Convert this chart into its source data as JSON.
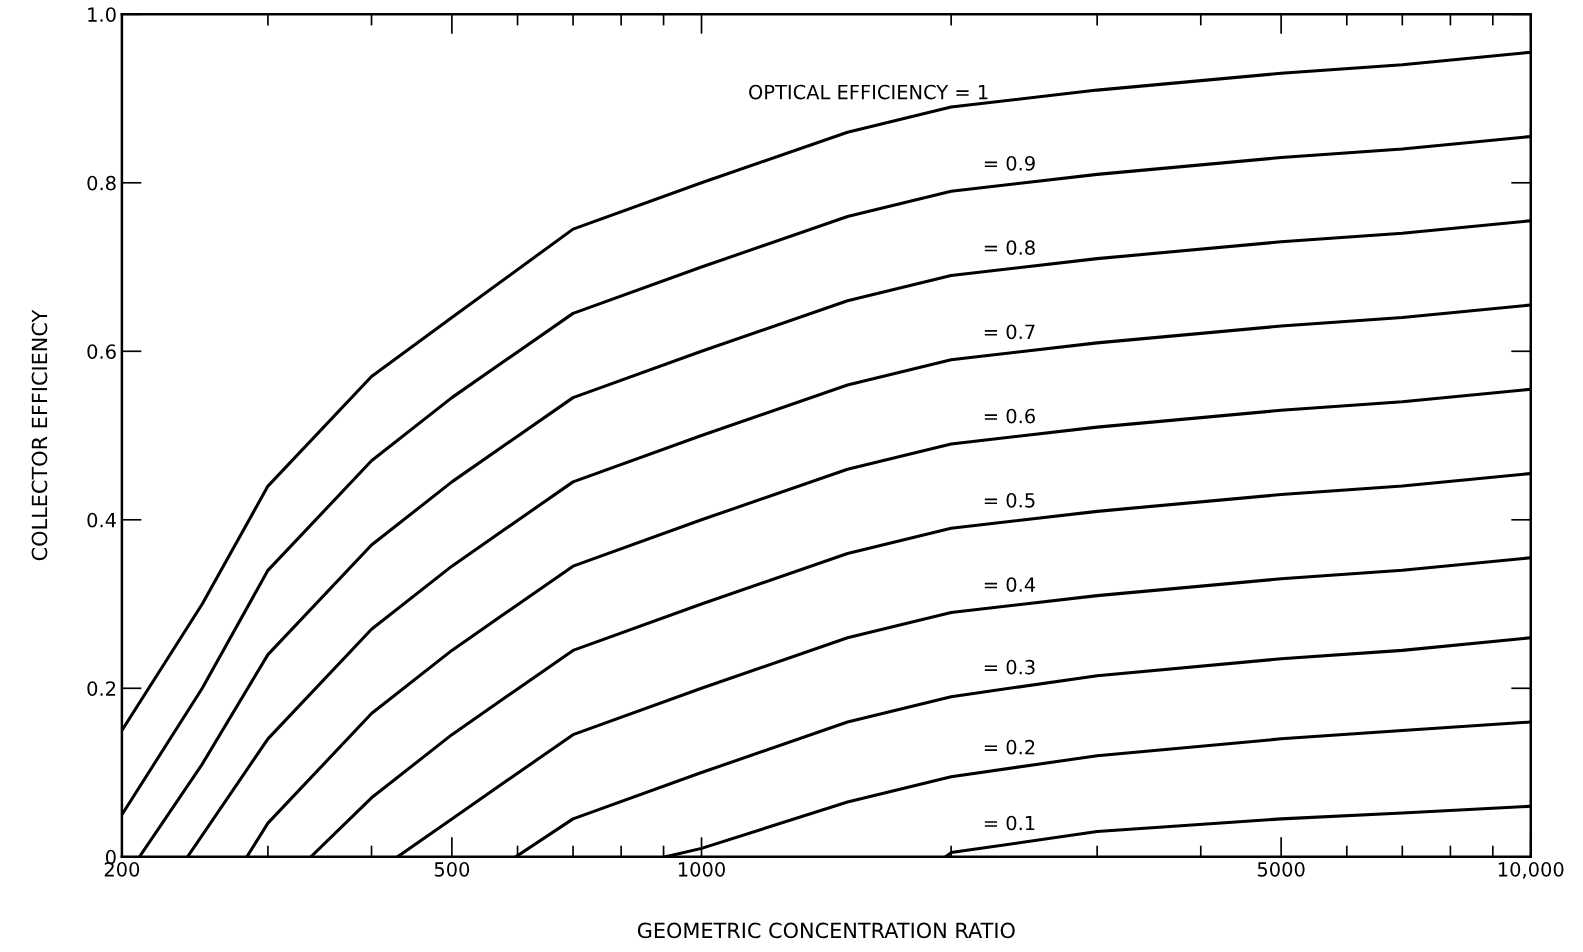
{
  "chart_data": {
    "type": "line",
    "xlabel": "GEOMETRIC CONCENTRATION RATIO",
    "ylabel": "COLLECTOR EFFICIENCY",
    "log": "x",
    "grid": false,
    "marker": "none",
    "line_style": "solid",
    "xlim": [
      200,
      10000
    ],
    "ylim": [
      0,
      1
    ],
    "xticks": [
      200,
      500,
      1000,
      5000,
      {
        "value": 10000,
        "label": "10,000"
      }
    ],
    "yticks": [
      0,
      0.2,
      0.4,
      0.6,
      0.8,
      {
        "value": 1,
        "label": "1.0"
      }
    ],
    "series": [
      {
        "name": "OPTICAL EFFICIENCY = 1",
        "color": "#000000",
        "x": [
          200,
          250,
          300,
          400,
          500,
          700,
          1000,
          1500,
          2000,
          3000,
          5000,
          7000,
          10000
        ],
        "values": [
          0.15,
          0.3,
          0.44,
          0.57,
          0.64,
          0.745,
          0.8,
          0.86,
          0.89,
          0.91,
          0.93,
          0.94,
          0.955
        ]
      },
      {
        "name": "= 0.9",
        "color": "#000000",
        "x": [
          200,
          250,
          300,
          400,
          500,
          700,
          1000,
          1500,
          2000,
          3000,
          5000,
          7000,
          10000
        ],
        "values": [
          0.05,
          0.2,
          0.34,
          0.47,
          0.545,
          0.645,
          0.7,
          0.76,
          0.79,
          0.81,
          0.83,
          0.84,
          0.855
        ]
      },
      {
        "name": "= 0.8",
        "color": "#000000",
        "x": [
          210,
          250,
          300,
          400,
          500,
          700,
          1000,
          1500,
          2000,
          3000,
          5000,
          7000,
          10000
        ],
        "values": [
          0,
          0.11,
          0.24,
          0.37,
          0.445,
          0.545,
          0.6,
          0.66,
          0.69,
          0.71,
          0.73,
          0.74,
          0.755
        ]
      },
      {
        "name": "= 0.7",
        "color": "#000000",
        "x": [
          240,
          300,
          400,
          500,
          700,
          1000,
          1500,
          2000,
          3000,
          5000,
          7000,
          10000
        ],
        "values": [
          0,
          0.14,
          0.27,
          0.345,
          0.445,
          0.5,
          0.56,
          0.59,
          0.61,
          0.63,
          0.64,
          0.655
        ]
      },
      {
        "name": "= 0.6",
        "color": "#000000",
        "x": [
          283,
          300,
          400,
          500,
          700,
          1000,
          1500,
          2000,
          3000,
          5000,
          7000,
          10000
        ],
        "values": [
          0,
          0.04,
          0.17,
          0.245,
          0.345,
          0.4,
          0.46,
          0.49,
          0.51,
          0.53,
          0.54,
          0.555
        ]
      },
      {
        "name": "= 0.5",
        "color": "#000000",
        "x": [
          338,
          400,
          500,
          700,
          1000,
          1500,
          2000,
          3000,
          5000,
          7000,
          10000
        ],
        "values": [
          0,
          0.07,
          0.145,
          0.245,
          0.3,
          0.36,
          0.39,
          0.41,
          0.43,
          0.44,
          0.455
        ]
      },
      {
        "name": "= 0.4",
        "color": "#000000",
        "x": [
          430,
          500,
          700,
          1000,
          1500,
          2000,
          3000,
          5000,
          7000,
          10000
        ],
        "values": [
          0,
          0.045,
          0.145,
          0.2,
          0.26,
          0.29,
          0.31,
          0.33,
          0.34,
          0.355
        ]
      },
      {
        "name": "= 0.3",
        "color": "#000000",
        "x": [
          597,
          700,
          1000,
          1500,
          2000,
          3000,
          5000,
          7000,
          10000
        ],
        "values": [
          0,
          0.045,
          0.1,
          0.16,
          0.19,
          0.215,
          0.235,
          0.245,
          0.26
        ]
      },
      {
        "name": "= 0.2",
        "color": "#000000",
        "x": [
          905,
          1000,
          1500,
          2000,
          3000,
          5000,
          7000,
          10000
        ],
        "values": [
          0,
          0.01,
          0.065,
          0.095,
          0.12,
          0.14,
          0.15,
          0.16
        ]
      },
      {
        "name": "= 0.1",
        "color": "#000000",
        "x": [
          1970,
          2000,
          3000,
          5000,
          7000,
          10000
        ],
        "values": [
          0,
          0.005,
          0.03,
          0.045,
          0.052,
          0.06
        ]
      }
    ]
  }
}
